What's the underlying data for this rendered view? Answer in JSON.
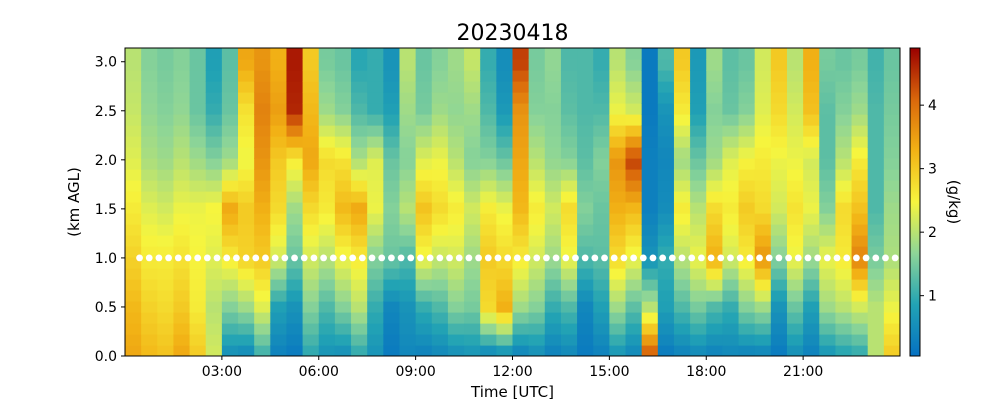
{
  "chart_data": {
    "type": "heatmap",
    "title": "20230418",
    "xlabel": "Time [UTC]",
    "ylabel": "(km AGL)",
    "colorbar_label": "(g/kg)",
    "xlim": [
      0,
      24
    ],
    "ylim": [
      0,
      3.14
    ],
    "x_ticks": [
      {
        "value": 3,
        "label": "03:00"
      },
      {
        "value": 6,
        "label": "06:00"
      },
      {
        "value": 9,
        "label": "09:00"
      },
      {
        "value": 12,
        "label": "12:00"
      },
      {
        "value": 15,
        "label": "15:00"
      },
      {
        "value": 18,
        "label": "18:00"
      },
      {
        "value": 21,
        "label": "21:00"
      }
    ],
    "y_ticks": [
      {
        "value": 0.0,
        "label": "0.0"
      },
      {
        "value": 0.5,
        "label": "0.5"
      },
      {
        "value": 1.0,
        "label": "1.0"
      },
      {
        "value": 1.5,
        "label": "1.5"
      },
      {
        "value": 2.0,
        "label": "2.0"
      },
      {
        "value": 2.5,
        "label": "2.5"
      },
      {
        "value": 3.0,
        "label": "3.0"
      }
    ],
    "color_range": [
      0.05,
      4.9
    ],
    "colorbar_ticks": [
      {
        "value": 1,
        "label": "1"
      },
      {
        "value": 2,
        "label": "2"
      },
      {
        "value": 3,
        "label": "3"
      },
      {
        "value": 4,
        "label": "4"
      }
    ],
    "colormap": [
      "#0571c2",
      "#22a3b4",
      "#8dd597",
      "#f6f53e",
      "#f2b215",
      "#d9670b",
      "#9a0000"
    ],
    "height_levels": [
      0.0,
      0.5,
      1.0,
      1.5,
      2.0,
      2.5,
      3.0
    ],
    "columns": [
      {
        "time": 0.0,
        "values": [
          3.4,
          3.2,
          2.9,
          2.6,
          2.3,
          2.1,
          2.0
        ]
      },
      {
        "time": 0.5,
        "values": [
          3.2,
          2.9,
          2.6,
          2.3,
          1.9,
          1.7,
          1.6
        ]
      },
      {
        "time": 1.0,
        "values": [
          3.1,
          2.8,
          2.6,
          2.2,
          1.8,
          1.6,
          1.5
        ]
      },
      {
        "time": 1.5,
        "values": [
          3.4,
          3.0,
          2.7,
          2.4,
          2.0,
          1.7,
          1.6
        ]
      },
      {
        "time": 2.0,
        "values": [
          3.0,
          2.6,
          2.5,
          2.4,
          1.8,
          1.4,
          1.4
        ]
      },
      {
        "time": 2.5,
        "values": [
          2.2,
          2.0,
          2.3,
          2.5,
          1.6,
          1.0,
          0.8
        ]
      },
      {
        "time": 3.0,
        "values": [
          0.5,
          1.6,
          2.6,
          3.4,
          1.8,
          1.4,
          1.3
        ]
      },
      {
        "time": 3.5,
        "values": [
          0.4,
          1.8,
          2.9,
          3.0,
          2.4,
          2.7,
          3.4
        ]
      },
      {
        "time": 4.0,
        "values": [
          1.0,
          2.3,
          3.0,
          3.3,
          3.6,
          3.8,
          3.6
        ]
      },
      {
        "time": 4.5,
        "values": [
          0.3,
          0.8,
          2.2,
          2.8,
          3.0,
          3.5,
          3.3
        ]
      },
      {
        "time": 5.0,
        "values": [
          0.2,
          0.6,
          1.4,
          1.8,
          2.6,
          4.6,
          4.7
        ]
      },
      {
        "time": 5.5,
        "values": [
          0.9,
          1.6,
          2.2,
          2.8,
          3.4,
          3.2,
          3.0
        ]
      },
      {
        "time": 6.0,
        "values": [
          0.6,
          1.2,
          2.0,
          2.6,
          2.8,
          1.8,
          1.5
        ]
      },
      {
        "time": 6.5,
        "values": [
          0.5,
          1.6,
          2.4,
          3.2,
          2.7,
          1.6,
          1.4
        ]
      },
      {
        "time": 7.0,
        "values": [
          0.9,
          2.0,
          2.6,
          3.4,
          1.9,
          1.2,
          0.9
        ]
      },
      {
        "time": 7.5,
        "values": [
          0.6,
          1.0,
          1.6,
          2.4,
          2.3,
          1.0,
          1.0
        ]
      },
      {
        "time": 8.0,
        "values": [
          0.2,
          0.4,
          1.4,
          1.6,
          1.4,
          0.8,
          0.6
        ]
      },
      {
        "time": 8.5,
        "values": [
          0.4,
          0.6,
          1.2,
          2.0,
          1.6,
          1.8,
          2.0
        ]
      },
      {
        "time": 9.0,
        "values": [
          0.3,
          1.0,
          2.4,
          3.1,
          2.3,
          1.5,
          1.4
        ]
      },
      {
        "time": 9.5,
        "values": [
          0.4,
          1.2,
          2.1,
          2.8,
          2.4,
          1.8,
          1.6
        ]
      },
      {
        "time": 10.0,
        "values": [
          0.5,
          1.6,
          2.2,
          2.6,
          2.0,
          1.7,
          1.8
        ]
      },
      {
        "time": 10.5,
        "values": [
          0.6,
          1.5,
          1.8,
          2.2,
          1.6,
          1.8,
          2.1
        ]
      },
      {
        "time": 11.0,
        "values": [
          0.3,
          2.8,
          3.0,
          2.6,
          1.6,
          1.2,
          1.0
        ]
      },
      {
        "time": 11.5,
        "values": [
          0.4,
          3.3,
          2.8,
          2.4,
          1.4,
          0.7,
          0.5
        ]
      },
      {
        "time": 12.0,
        "values": [
          0.3,
          1.8,
          2.6,
          3.2,
          3.4,
          3.6,
          4.4
        ]
      },
      {
        "time": 12.5,
        "values": [
          0.5,
          1.6,
          2.2,
          2.6,
          2.0,
          1.6,
          1.5
        ]
      },
      {
        "time": 13.0,
        "values": [
          0.3,
          1.0,
          1.8,
          2.2,
          1.7,
          1.6,
          1.7
        ]
      },
      {
        "time": 13.5,
        "values": [
          0.4,
          1.2,
          2.4,
          2.8,
          1.6,
          1.3,
          1.2
        ]
      },
      {
        "time": 14.0,
        "values": [
          0.2,
          0.4,
          1.2,
          1.6,
          1.3,
          1.2,
          1.2
        ]
      },
      {
        "time": 14.5,
        "values": [
          0.3,
          0.8,
          1.3,
          1.4,
          1.6,
          1.2,
          1.0
        ]
      },
      {
        "time": 15.0,
        "values": [
          0.6,
          1.8,
          2.8,
          3.3,
          3.6,
          2.4,
          2.0
        ]
      },
      {
        "time": 15.5,
        "values": [
          0.4,
          1.3,
          2.4,
          3.2,
          4.4,
          2.2,
          1.6
        ]
      },
      {
        "time": 16.0,
        "values": [
          4.3,
          2.0,
          0.6,
          0.3,
          0.3,
          0.2,
          0.2
        ]
      },
      {
        "time": 16.5,
        "values": [
          0.2,
          0.8,
          1.0,
          0.5,
          0.4,
          0.6,
          1.2
        ]
      },
      {
        "time": 17.0,
        "values": [
          0.3,
          1.2,
          2.0,
          2.6,
          1.8,
          2.6,
          3.0
        ]
      },
      {
        "time": 17.5,
        "values": [
          0.4,
          1.5,
          2.4,
          2.0,
          1.4,
          0.8,
          0.7
        ]
      },
      {
        "time": 18.0,
        "values": [
          0.3,
          1.2,
          3.3,
          2.8,
          1.8,
          1.6,
          1.8
        ]
      },
      {
        "time": 18.5,
        "values": [
          0.4,
          1.0,
          2.2,
          2.6,
          2.3,
          1.4,
          1.3
        ]
      },
      {
        "time": 19.0,
        "values": [
          0.3,
          1.6,
          2.6,
          3.0,
          2.5,
          1.6,
          1.4
        ]
      },
      {
        "time": 19.5,
        "values": [
          0.3,
          1.8,
          3.6,
          2.8,
          2.6,
          2.3,
          2.2
        ]
      },
      {
        "time": 20.0,
        "values": [
          0.2,
          0.6,
          1.6,
          2.2,
          2.4,
          2.8,
          3.0
        ]
      },
      {
        "time": 20.5,
        "values": [
          0.5,
          1.4,
          2.4,
          2.7,
          2.4,
          2.2,
          2.0
        ]
      },
      {
        "time": 21.0,
        "values": [
          0.3,
          0.8,
          1.8,
          2.4,
          2.2,
          3.1,
          3.3
        ]
      },
      {
        "time": 21.5,
        "values": [
          0.6,
          1.8,
          2.4,
          1.6,
          1.3,
          1.3,
          1.5
        ]
      },
      {
        "time": 22.0,
        "values": [
          0.8,
          2.0,
          2.6,
          2.8,
          2.0,
          1.6,
          1.4
        ]
      },
      {
        "time": 22.5,
        "values": [
          0.9,
          2.2,
          3.8,
          3.1,
          2.6,
          1.8,
          1.5
        ]
      },
      {
        "time": 23.0,
        "values": [
          2.0,
          2.0,
          1.5,
          1.2,
          1.2,
          1.2,
          1.1
        ]
      },
      {
        "time": 23.5,
        "values": [
          3.0,
          2.4,
          1.9,
          1.8,
          1.6,
          1.5,
          1.4
        ]
      }
    ],
    "marker_height": 1.0,
    "marker_color": "#ffffff"
  }
}
